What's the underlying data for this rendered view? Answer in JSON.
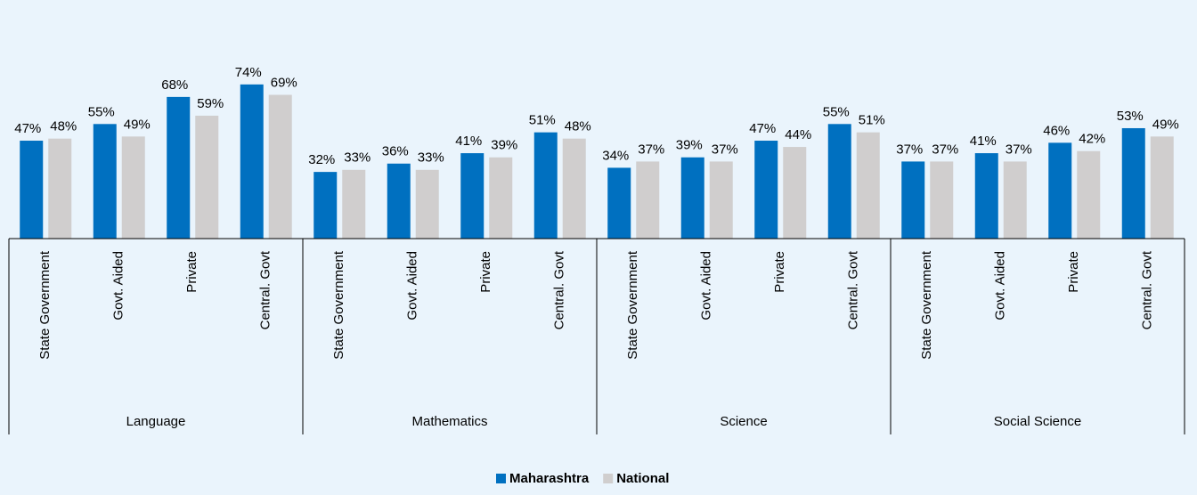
{
  "chart_data": {
    "type": "bar",
    "groups": [
      "Language",
      "Mathematics",
      "Science",
      "Social Science"
    ],
    "categories": [
      "State Government",
      "Govt. Aided",
      "Private",
      "Central. Govt",
      "State Government",
      "Govt. Aided",
      "Private",
      "Central. Govt",
      "State Government",
      "Govt. Aided",
      "Private",
      "Central. Govt",
      "State Government",
      "Govt. Aided",
      "Private",
      "Central. Govt"
    ],
    "series": [
      {
        "name": "Maharashtra",
        "color": "#0070c0",
        "values": [
          47,
          55,
          68,
          74,
          32,
          36,
          41,
          51,
          34,
          39,
          47,
          55,
          37,
          41,
          46,
          53
        ],
        "value_labels": [
          "47%",
          "55%",
          "68%",
          "74%",
          "32%",
          "36%",
          "41%",
          "51%",
          "34%",
          "39%",
          "47%",
          "55%",
          "37%",
          "41%",
          "46%",
          "53%"
        ]
      },
      {
        "name": "National",
        "color": "#d0cece",
        "values": [
          48,
          49,
          59,
          69,
          33,
          33,
          39,
          48,
          37,
          37,
          44,
          51,
          37,
          37,
          42,
          49
        ],
        "value_labels": [
          "48%",
          "49%",
          "59%",
          "69%",
          "33%",
          "33%",
          "39%",
          "48%",
          "37%",
          "37%",
          "44%",
          "51%",
          "37%",
          "37%",
          "42%",
          "49%"
        ]
      }
    ]
  }
}
